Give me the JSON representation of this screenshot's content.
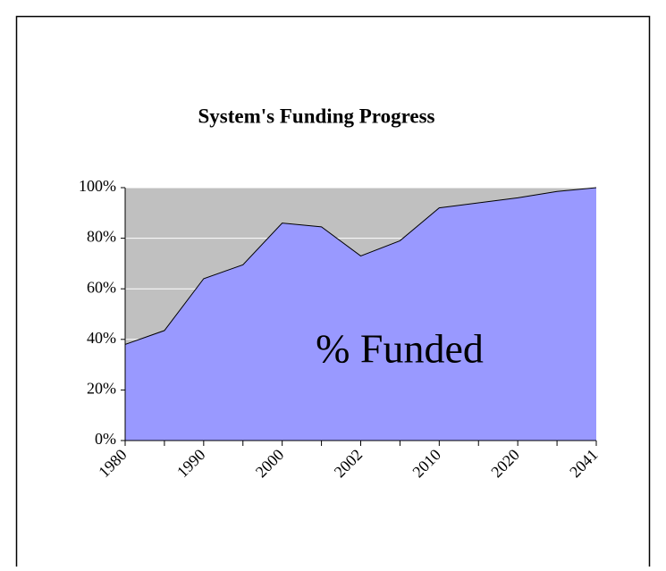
{
  "chart_data": {
    "type": "area",
    "title": "System's Funding Progress",
    "categories": [
      "1980",
      null,
      "1990",
      null,
      "2000",
      null,
      "2002",
      null,
      "2010",
      null,
      "2020",
      null,
      "2041"
    ],
    "series": [
      {
        "name": "% Funded",
        "color": "#9999ff",
        "values": [
          38,
          43.5,
          64,
          69.5,
          86,
          84.5,
          73,
          79,
          92,
          94,
          96,
          98.5,
          100
        ]
      }
    ],
    "ylim": [
      0,
      100
    ],
    "yticks": [
      {
        "value": 0,
        "label": "0%"
      },
      {
        "value": 20,
        "label": "20%"
      },
      {
        "value": 40,
        "label": "40%"
      },
      {
        "value": 60,
        "label": "60%"
      },
      {
        "value": 80,
        "label": "80%"
      },
      {
        "value": 100,
        "label": "100%"
      }
    ],
    "grid": true,
    "plot_background": "#c0c0c0"
  }
}
